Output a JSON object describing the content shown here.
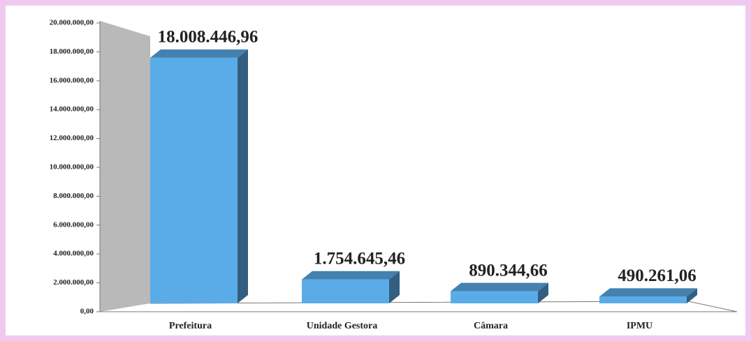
{
  "chart_data": {
    "type": "bar3d",
    "categories": [
      "Prefeitura",
      "Unidade Gestora",
      "Câmara",
      "IPMU"
    ],
    "values": [
      18008446.96,
      1754645.46,
      890344.66,
      490261.06
    ],
    "value_labels": [
      "18.008.446,96",
      "1.754.645,46",
      "890.344,66",
      "490.261,06"
    ],
    "color": "#5aace8",
    "ylim": [
      0,
      20000000
    ],
    "yticks": [
      {
        "value": 0,
        "label": "0,00"
      },
      {
        "value": 2000000,
        "label": "2.000.000,00"
      },
      {
        "value": 4000000,
        "label": "4.000.000,00"
      },
      {
        "value": 6000000,
        "label": "6.000.000,00"
      },
      {
        "value": 8000000,
        "label": "8.000.000,00"
      },
      {
        "value": 10000000,
        "label": "10.000.000,00"
      },
      {
        "value": 12000000,
        "label": "12.000.000,00"
      },
      {
        "value": 14000000,
        "label": "14.000.000,00"
      },
      {
        "value": 16000000,
        "label": "16.000.000,00"
      },
      {
        "value": 18000000,
        "label": "18.000.000,00"
      },
      {
        "value": 20000000,
        "label": "20.000.000,00"
      }
    ]
  }
}
